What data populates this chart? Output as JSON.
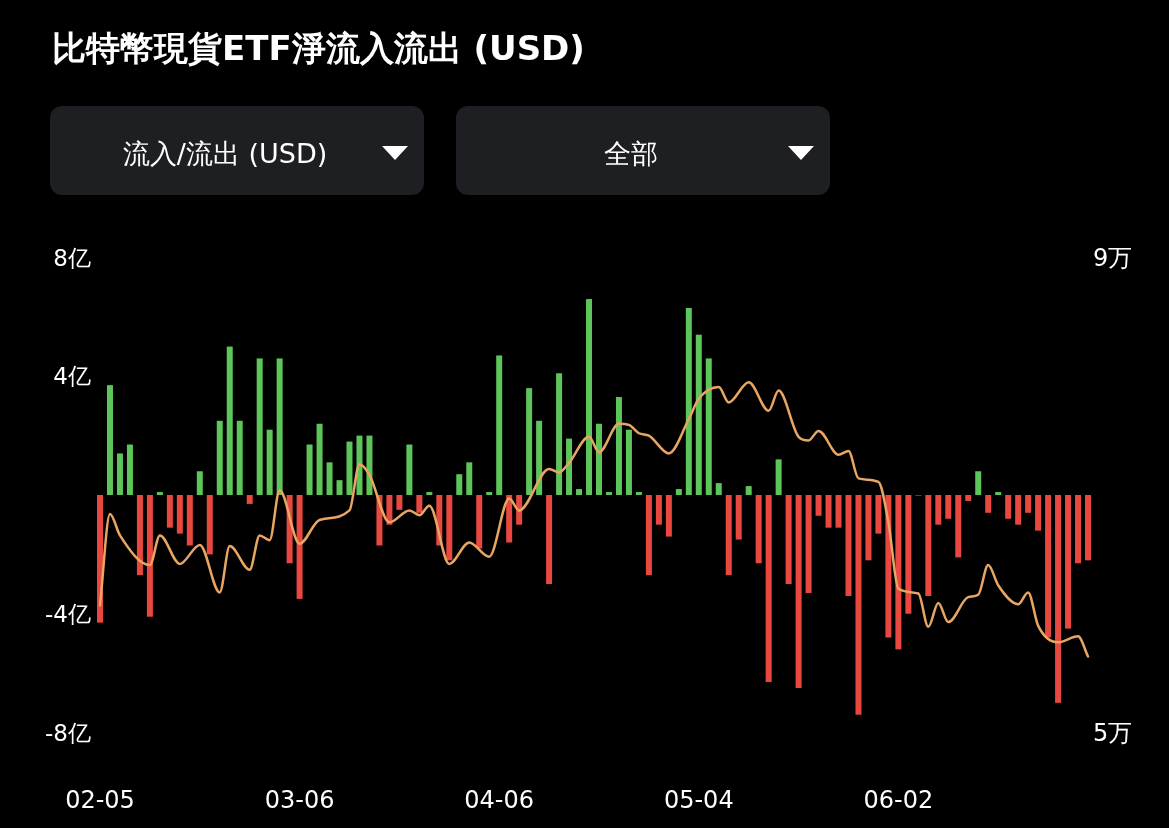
{
  "chart_data": {
    "type": "bar",
    "title": "比特幣現貨ETF淨流入流出 (USD)",
    "annotations": [
      "流入/流出 (USD)",
      "全部"
    ],
    "categories": [
      "02-05",
      null,
      null,
      null,
      null,
      null,
      null,
      null,
      null,
      null,
      null,
      null,
      null,
      null,
      null,
      null,
      null,
      null,
      null,
      null,
      "03-06",
      null,
      null,
      null,
      null,
      null,
      null,
      null,
      null,
      null,
      null,
      null,
      null,
      null,
      null,
      null,
      null,
      null,
      null,
      null,
      "04-06",
      null,
      null,
      null,
      null,
      null,
      null,
      null,
      null,
      null,
      null,
      null,
      null,
      null,
      null,
      null,
      null,
      null,
      null,
      null,
      "05-04",
      null,
      null,
      null,
      null,
      null,
      null,
      null,
      null,
      null,
      null,
      null,
      null,
      null,
      null,
      null,
      null,
      null,
      null,
      null,
      "06-02",
      null,
      null,
      null,
      null,
      null,
      null,
      null,
      null,
      null,
      null,
      null,
      null,
      null,
      null,
      null,
      null,
      null,
      null,
      null
    ],
    "ylim": [
      -8,
      8
    ],
    "yticks": [
      {
        "value": 8,
        "label": "8亿"
      },
      {
        "value": 4,
        "label": "4亿"
      },
      {
        "value": -4,
        "label": "-4亿"
      },
      {
        "value": -8,
        "label": "-8亿"
      }
    ],
    "y2lim": [
      5,
      9
    ],
    "y2ticks": [
      {
        "value": 9,
        "label": "9万"
      },
      {
        "value": 5,
        "label": "5万"
      }
    ],
    "series": [
      {
        "values": [
          -4.3,
          3.7,
          1.4,
          1.7,
          -2.7,
          -4.1,
          0.1,
          -1.1,
          -1.3,
          -1.7,
          0.8,
          -2.0,
          2.5,
          5.0,
          2.5,
          -0.3,
          4.6,
          2.2,
          4.6,
          -2.3,
          -3.5,
          1.7,
          2.4,
          1.1,
          0.5,
          1.8,
          2.0,
          2.0,
          -1.7,
          -1.0,
          -0.5,
          1.7,
          -0.6,
          0.1,
          -1.7,
          -2.2,
          0.7,
          1.1,
          -1.8,
          0.1,
          4.7,
          -1.6,
          -1.0,
          3.6,
          2.5,
          -3.0,
          4.1,
          1.9,
          0.2,
          6.6,
          2.4,
          0.1,
          3.3,
          2.2,
          0.1,
          -2.7,
          -1.0,
          -1.4,
          0.2,
          6.3,
          5.4,
          4.6,
          0.4,
          -2.7,
          -1.5,
          0.3,
          -2.3,
          -6.3,
          1.2,
          -3.0,
          -6.5,
          -3.3,
          -0.7,
          -1.1,
          -1.1,
          -3.4,
          -7.4,
          -2.2,
          -1.3,
          -4.8,
          -5.2,
          -4.0,
          0,
          -3.4,
          -1.0,
          -0.8,
          -2.1,
          -0.2,
          0.8,
          -0.6,
          0.1,
          -0.8,
          -1.0,
          -0.6,
          -1.2,
          -4.8,
          -7.0,
          -4.5,
          -2.3,
          -2.2
        ],
        "colors": [
          "#e8483f",
          "#5ec55a",
          "#5ec55a",
          "#5ec55a",
          "#e8483f",
          "#e8483f",
          "#5ec55a",
          "#e8483f",
          "#e8483f",
          "#e8483f",
          "#5ec55a",
          "#e8483f",
          "#5ec55a",
          "#5ec55a",
          "#5ec55a",
          "#e8483f",
          "#5ec55a",
          "#5ec55a",
          "#5ec55a",
          "#e8483f",
          "#e8483f",
          "#5ec55a",
          "#5ec55a",
          "#5ec55a",
          "#5ec55a",
          "#5ec55a",
          "#5ec55a",
          "#5ec55a",
          "#e8483f",
          "#e8483f",
          "#e8483f",
          "#5ec55a",
          "#e8483f",
          "#5ec55a",
          "#e8483f",
          "#e8483f",
          "#5ec55a",
          "#5ec55a",
          "#e8483f",
          "#5ec55a",
          "#5ec55a",
          "#e8483f",
          "#e8483f",
          "#5ec55a",
          "#5ec55a",
          "#e8483f",
          "#5ec55a",
          "#5ec55a",
          "#5ec55a",
          "#5ec55a",
          "#5ec55a",
          "#5ec55a",
          "#5ec55a",
          "#5ec55a",
          "#5ec55a",
          "#e8483f",
          "#e8483f",
          "#e8483f",
          "#5ec55a",
          "#5ec55a",
          "#5ec55a",
          "#5ec55a",
          "#5ec55a",
          "#e8483f",
          "#e8483f",
          "#5ec55a",
          "#e8483f",
          "#e8483f",
          "#5ec55a",
          "#e8483f",
          "#e8483f",
          "#e8483f",
          "#e8483f",
          "#e8483f",
          "#e8483f",
          "#e8483f",
          "#e8483f",
          "#e8483f",
          "#e8483f",
          "#e8483f",
          "#e8483f",
          "#e8483f",
          "#e8483f",
          "#e8483f",
          "#e8483f",
          "#e8483f",
          "#e8483f",
          "#e8483f",
          "#5ec55a",
          "#e8483f",
          "#5ec55a",
          "#e8483f",
          "#e8483f",
          "#e8483f",
          "#e8483f",
          "#e8483f",
          "#e8483f",
          "#e8483f",
          "#e8483f",
          "#e8483f"
        ]
      },
      {
        "type": "line",
        "axis": "y2",
        "color": "#e9a663",
        "values": [
          6.07,
          6.84,
          6.66,
          null,
          null,
          6.41,
          6.66,
          null,
          6.42,
          null,
          6.58,
          null,
          6.18,
          6.57,
          null,
          6.37,
          6.66,
          6.62,
          7.04,
          null,
          6.59,
          null,
          6.79,
          null,
          null,
          6.87,
          7.26,
          7.17,
          null,
          6.77,
          null,
          6.87,
          6.83,
          6.91,
          null,
          6.42,
          null,
          6.6,
          null,
          6.48,
          null,
          6.97,
          6.87,
          null,
          null,
          7.22,
          7.19,
          7.27,
          null,
          7.49,
          7.36,
          null,
          7.6,
          7.59,
          7.52,
          7.5,
          null,
          7.35,
          null,
          7.64,
          7.81,
          null,
          7.91,
          7.78,
          null,
          7.95,
          null,
          7.71,
          7.88,
          null,
          7.49,
          7.46,
          7.54,
          null,
          7.34,
          7.37,
          7.14,
          null,
          7.11,
          6.77,
          6.21,
          null,
          6.17,
          5.89,
          6.09,
          5.93,
          null,
          6.14,
          6.16,
          6.41,
          6.24,
          null,
          6.08,
          6.18,
          5.9,
          null,
          5.76,
          null,
          5.81,
          5.64
        ]
      }
    ]
  }
}
